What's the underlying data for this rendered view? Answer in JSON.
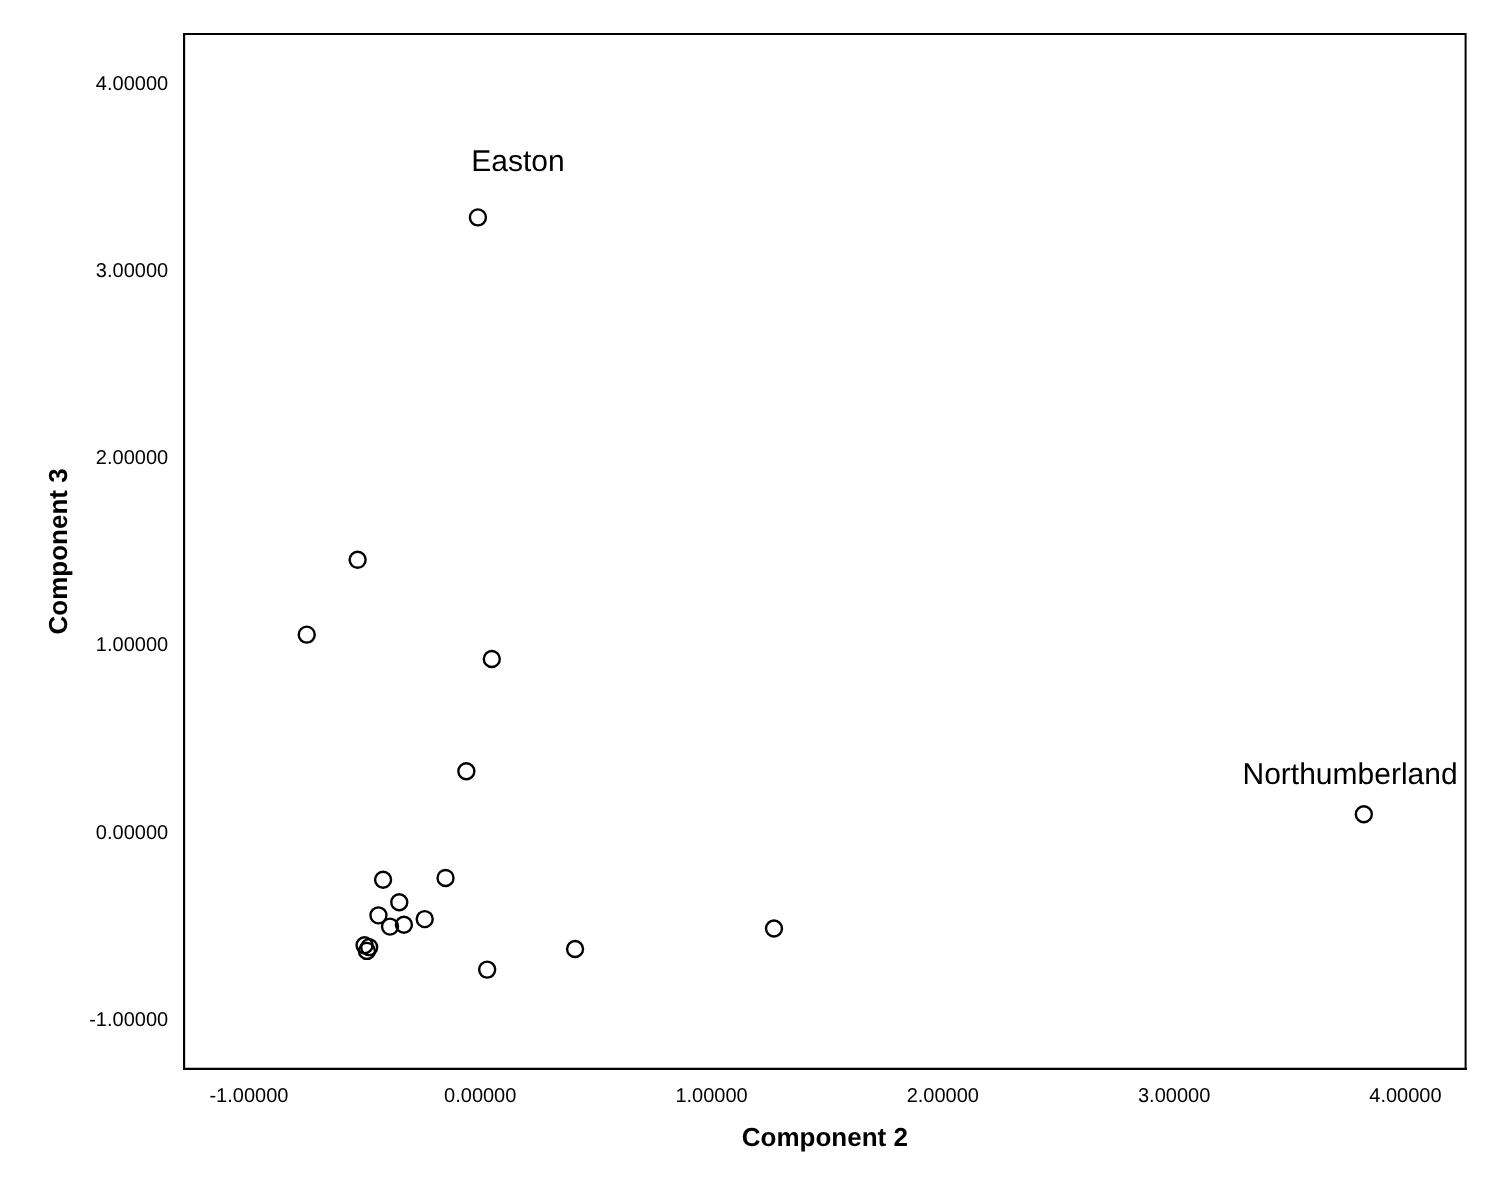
{
  "chart_data": {
    "type": "scatter",
    "xlabel": "Component 2",
    "ylabel": "Component 3",
    "x": [
      -0.01,
      -0.53,
      -0.75,
      0.05,
      -0.06,
      3.82,
      -0.42,
      -0.15,
      -0.35,
      -0.44,
      -0.39,
      -0.33,
      -0.24,
      -0.5,
      -0.48,
      -0.49,
      0.03,
      0.41,
      1.27
    ],
    "series": [
      {
        "color": "#000000",
        "values": [
          3.29,
          1.46,
          1.06,
          0.93,
          0.33,
          0.1,
          -0.25,
          -0.24,
          -0.37,
          -0.44,
          -0.5,
          -0.49,
          -0.46,
          -0.6,
          -0.61,
          -0.63,
          -0.73,
          -0.62,
          -0.51
        ]
      }
    ],
    "xlim": [
      -1.28,
      4.26
    ],
    "ylim": [
      -1.26,
      4.27
    ],
    "xticks": [
      {
        "value": -1,
        "label": "-1.00000"
      },
      {
        "value": 0,
        "label": "0.00000"
      },
      {
        "value": 1,
        "label": "1.00000"
      },
      {
        "value": 2,
        "label": "2.00000"
      },
      {
        "value": 3,
        "label": "3.00000"
      },
      {
        "value": 4,
        "label": "4.00000"
      }
    ],
    "yticks": [
      {
        "value": -1,
        "label": "-1.00000"
      },
      {
        "value": 0,
        "label": "0.00000"
      },
      {
        "value": 1,
        "label": "1.00000"
      },
      {
        "value": 2,
        "label": "2.00000"
      },
      {
        "value": 3,
        "label": "3.00000"
      },
      {
        "value": 4,
        "label": "4.00000"
      }
    ],
    "annotations": [
      {
        "text": "Easton",
        "x": -0.01,
        "y": 3.29
      },
      {
        "text": "Northumberland",
        "x": 3.82,
        "y": 0.1
      }
    ],
    "marker": "circle",
    "grid": false,
    "legend": false
  }
}
